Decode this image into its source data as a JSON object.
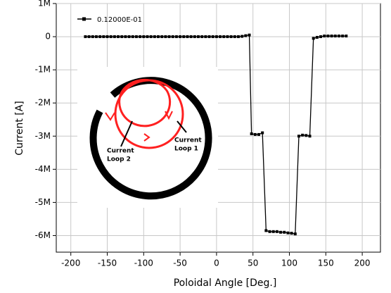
{
  "chart_data": {
    "type": "line",
    "xlabel": "Poloidal Angle [Deg.]",
    "ylabel": "Current [A]",
    "x": [
      -180,
      -175,
      -170,
      -165,
      -160,
      -155,
      -150,
      -145,
      -140,
      -135,
      -130,
      -125,
      -120,
      -115,
      -110,
      -105,
      -100,
      -95,
      -90,
      -85,
      -80,
      -75,
      -70,
      -65,
      -60,
      -55,
      -50,
      -45,
      -40,
      -35,
      -30,
      -25,
      -20,
      -15,
      -10,
      -5,
      0,
      5,
      10,
      15,
      20,
      25,
      30,
      35,
      40,
      45,
      48,
      53,
      58,
      63,
      68,
      73,
      78,
      83,
      88,
      93,
      98,
      103,
      108,
      113,
      118,
      123,
      128,
      133,
      138,
      143,
      148,
      153,
      158,
      163,
      168,
      173,
      178
    ],
    "series": [
      {
        "name": "0.12000E-01",
        "color": "#000000",
        "values": [
          0,
          0,
          0,
          0,
          0,
          0,
          0,
          0,
          0,
          0,
          0,
          0,
          0,
          0,
          0,
          0,
          0,
          0,
          0,
          0,
          0,
          0,
          0,
          0,
          0,
          0,
          0,
          0,
          0,
          0,
          0,
          0,
          0,
          0,
          0,
          0,
          0,
          0,
          0,
          0,
          0,
          0,
          0,
          10000,
          30000,
          50000,
          -2930000,
          -2950000,
          -2950000,
          -2900000,
          -5850000,
          -5880000,
          -5880000,
          -5880000,
          -5900000,
          -5900000,
          -5920000,
          -5930000,
          -5950000,
          -3000000,
          -2970000,
          -2980000,
          -3000000,
          -50000,
          -20000,
          0,
          20000,
          20000,
          20000,
          20000,
          20000,
          20000,
          20000
        ]
      }
    ],
    "xlim": [
      -220,
      225
    ],
    "xticks": [
      -200,
      -150,
      -100,
      -50,
      0,
      50,
      100,
      150,
      200
    ],
    "ylim": [
      -6500000,
      1000000
    ],
    "yticks": [
      {
        "value": 1000000,
        "label": "1M"
      },
      0,
      {
        "value": -1000000,
        "label": "-1M"
      },
      {
        "value": -2000000,
        "label": "-2M"
      },
      {
        "value": -3000000,
        "label": "-3M"
      },
      {
        "value": -4000000,
        "label": "-4M"
      },
      {
        "value": -5000000,
        "label": "-5M"
      },
      {
        "value": -6000000,
        "label": "-6M"
      }
    ],
    "grid": true,
    "legend": "upper left",
    "annotations": [
      [
        "Current",
        "Loop 2"
      ],
      [
        "Current",
        "Loop 1"
      ]
    ]
  }
}
